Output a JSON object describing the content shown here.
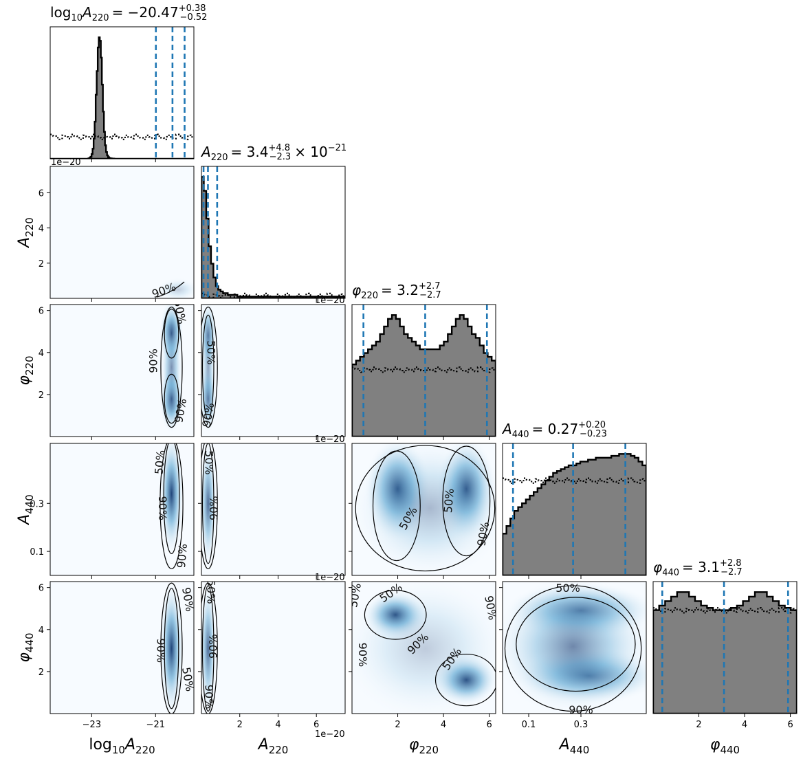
{
  "chart_data": {
    "type": "corner",
    "parameters": [
      {
        "key": "logA220",
        "title_main": "log",
        "title_sub": "10",
        "title_rest": "A",
        "title_rest_sub": "220",
        "title_value": "= −20.47",
        "title_plus": "+0.38",
        "title_minus": "−0.52",
        "title_extra": "",
        "axis_label": "log10A220",
        "ticks": [
          "−23",
          "−21"
        ],
        "offset": ""
      },
      {
        "key": "A220",
        "title_main": "",
        "title_sub": "",
        "title_rest": "A",
        "title_rest_sub": "220",
        "title_value": "= 3.4",
        "title_plus": "+4.8",
        "title_minus": "−2.3",
        "title_extra": "× 10−21",
        "axis_label": "A220",
        "ticks": [
          "2",
          "4",
          "6"
        ],
        "offset": "1e−20"
      },
      {
        "key": "phi220",
        "title_main": "",
        "title_sub": "",
        "title_rest": "φ",
        "title_rest_sub": "220",
        "title_value": "= 3.2",
        "title_plus": "+2.7",
        "title_minus": "−2.7",
        "title_extra": "",
        "axis_label": "φ220",
        "ticks": [
          "2",
          "4",
          "6"
        ],
        "offset": ""
      },
      {
        "key": "A440",
        "title_main": "",
        "title_sub": "",
        "title_rest": "A",
        "title_rest_sub": "440",
        "title_value": "= 0.27",
        "title_plus": "+0.20",
        "title_minus": "−0.23",
        "title_extra": "",
        "axis_label": "A440",
        "ticks": [
          "0.1",
          "0.3"
        ],
        "offset": ""
      },
      {
        "key": "phi440",
        "title_main": "",
        "title_sub": "",
        "title_rest": "φ",
        "title_rest_sub": "440",
        "title_value": "= 3.1",
        "title_plus": "+2.8",
        "title_minus": "−2.7",
        "title_extra": "",
        "axis_label": "φ440",
        "ticks": [
          "2",
          "4",
          "6"
        ],
        "offset": ""
      }
    ],
    "ranges": [
      [
        -24.3,
        -19.8
      ],
      [
        0.0,
        7.5e-20
      ],
      [
        0.0,
        6.283
      ],
      [
        0.0,
        0.55
      ],
      [
        0.0,
        6.283
      ]
    ],
    "tick_values": [
      [
        -23,
        -21
      ],
      [
        2e-20,
        4e-20,
        6e-20
      ],
      [
        2,
        4,
        6
      ],
      [
        0.1,
        0.3
      ],
      [
        2,
        4,
        6
      ]
    ],
    "posterior_hist": [
      {
        "bins": [
          -24.3,
          -19.8
        ],
        "counts": [
          0,
          0,
          0,
          0,
          0,
          0,
          0,
          0,
          0,
          0,
          0,
          0,
          0,
          0,
          0,
          0,
          0,
          0,
          0,
          0,
          0,
          0,
          0,
          0,
          0,
          0,
          0,
          0,
          0,
          0,
          0,
          0,
          0,
          0,
          0,
          0,
          0,
          0.3,
          0.6,
          1.2,
          2.8,
          6,
          12,
          22,
          38,
          52,
          66,
          72,
          70,
          60,
          44,
          28,
          16,
          8,
          4,
          2,
          1,
          0.5,
          0.3,
          0.2,
          0.1,
          0.1,
          0,
          0,
          0,
          0,
          0,
          0,
          0,
          0,
          0,
          0,
          0,
          0,
          0,
          0,
          0,
          0,
          0,
          0,
          0,
          0,
          0,
          0,
          0,
          0,
          0,
          0,
          0,
          0,
          0,
          0,
          0,
          0,
          0,
          0,
          0,
          0,
          0,
          0,
          0,
          0,
          0,
          0,
          0,
          0,
          0,
          0,
          0,
          0,
          0,
          0,
          0,
          0,
          0,
          0,
          0,
          0,
          0,
          0,
          0,
          0,
          0,
          0,
          0,
          0,
          0,
          0,
          0,
          0,
          0,
          0,
          0,
          0,
          0,
          0,
          0,
          0,
          0
        ]
      },
      {
        "bins": [
          0,
          7.5e-20
        ],
        "counts": [
          70,
          62,
          46,
          30,
          20,
          12,
          7,
          5,
          4,
          3,
          3,
          2,
          2,
          2,
          2,
          1,
          1,
          1,
          1,
          1,
          1,
          1,
          1,
          1,
          1,
          1,
          1,
          1,
          1,
          1,
          1,
          1,
          1,
          1,
          1,
          1,
          1,
          1,
          1,
          1,
          1,
          1,
          1,
          1,
          1,
          1,
          1,
          1,
          1,
          1,
          1,
          1,
          1,
          1,
          1,
          1,
          1,
          1,
          1,
          1
        ]
      },
      {
        "bins": [
          0,
          6.283
        ],
        "counts": [
          38,
          40,
          42,
          44,
          46,
          48,
          50,
          54,
          58,
          62,
          64,
          62,
          58,
          54,
          52,
          50,
          48,
          46,
          46,
          46,
          46,
          46,
          48,
          50,
          54,
          58,
          62,
          64,
          62,
          58,
          54,
          52,
          48,
          44,
          42,
          40
        ]
      },
      {
        "bins": [
          0,
          0.55
        ],
        "counts": [
          22,
          26,
          30,
          34,
          36,
          38,
          40,
          42,
          44,
          46,
          48,
          50,
          52,
          54,
          55,
          56,
          57,
          58,
          58,
          59,
          60,
          60,
          61,
          61,
          62,
          62,
          62,
          62,
          63,
          63,
          64,
          64,
          64,
          63,
          62,
          60,
          58
        ]
      },
      {
        "bins": [
          0,
          6.283
        ],
        "counts": [
          46,
          48,
          50,
          52,
          54,
          54,
          52,
          50,
          48,
          47,
          46,
          46,
          46,
          47,
          48,
          50,
          52,
          54,
          54,
          52,
          50,
          48,
          47,
          46
        ]
      }
    ],
    "prior_hist": [
      {
        "level": 0.18
      },
      {
        "level": 0.02
      },
      {
        "level": 0.55
      },
      {
        "level": 0.78
      },
      {
        "level": 0.85
      }
    ],
    "quantile_lines": [
      [
        -20.99,
        -20.47,
        -20.09
      ],
      [
        1.1e-21,
        3.4e-21,
        8.2e-21
      ],
      [
        0.5,
        3.2,
        5.9
      ],
      [
        0.04,
        0.27,
        0.47
      ],
      [
        0.4,
        3.1,
        5.9
      ]
    ],
    "contour_labels": {
      "inner": "50%",
      "outer": "90%"
    },
    "colormap": {
      "low": "#f7fbff",
      "mid": "#6baed6",
      "high": "#08306b"
    },
    "hist_fill": "#808080",
    "quantile_color": "#1f77b4",
    "line_color": "#000000"
  }
}
